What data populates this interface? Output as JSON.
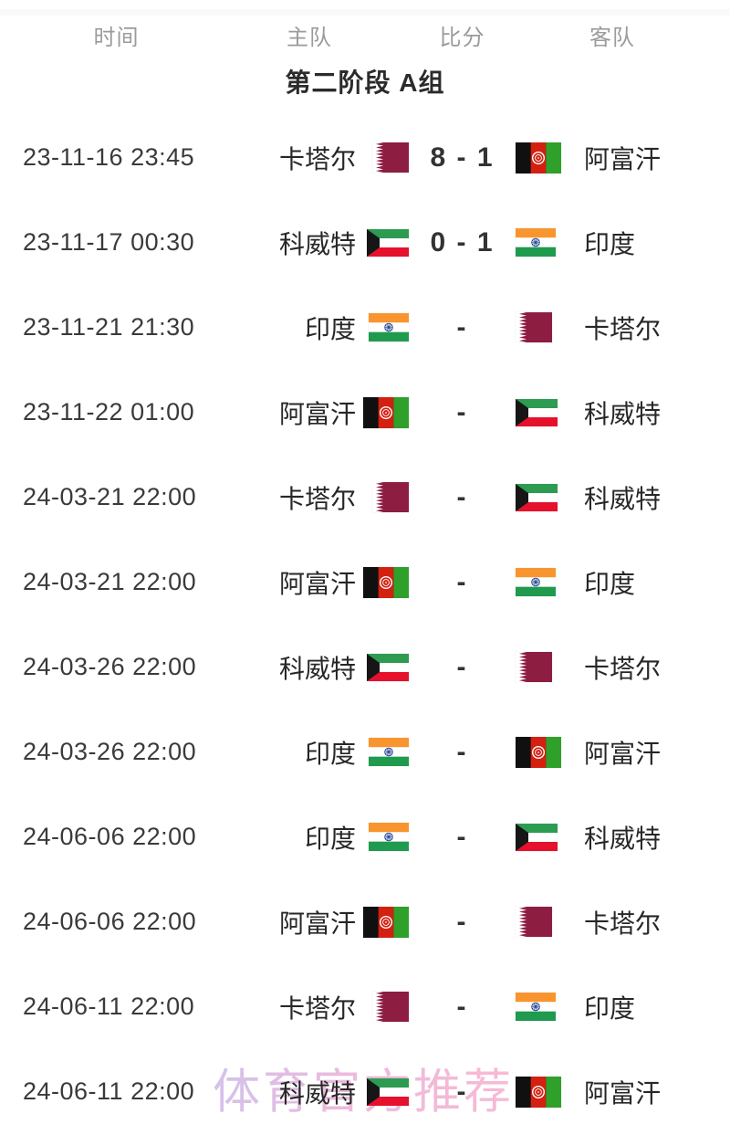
{
  "header": {
    "columns": [
      "时间",
      "主队",
      "比分",
      "客队"
    ]
  },
  "section_title": "第二阶段 A组",
  "watermark": "体育官方推荐",
  "matches": [
    {
      "time": "23-11-16 23:45",
      "home": "卡塔尔",
      "home_flag": "qatar",
      "score": "8 - 1",
      "away": "阿富汗",
      "away_flag": "afghanistan"
    },
    {
      "time": "23-11-17 00:30",
      "home": "科威特",
      "home_flag": "kuwait",
      "score": "0 - 1",
      "away": "印度",
      "away_flag": "india"
    },
    {
      "time": "23-11-21 21:30",
      "home": "印度",
      "home_flag": "india",
      "score": "-",
      "away": "卡塔尔",
      "away_flag": "qatar"
    },
    {
      "time": "23-11-22 01:00",
      "home": "阿富汗",
      "home_flag": "afghanistan",
      "score": "-",
      "away": "科威特",
      "away_flag": "kuwait"
    },
    {
      "time": "24-03-21 22:00",
      "home": "卡塔尔",
      "home_flag": "qatar",
      "score": "-",
      "away": "科威特",
      "away_flag": "kuwait"
    },
    {
      "time": "24-03-21 22:00",
      "home": "阿富汗",
      "home_flag": "afghanistan",
      "score": "-",
      "away": "印度",
      "away_flag": "india"
    },
    {
      "time": "24-03-26 22:00",
      "home": "科威特",
      "home_flag": "kuwait",
      "score": "-",
      "away": "卡塔尔",
      "away_flag": "qatar"
    },
    {
      "time": "24-03-26 22:00",
      "home": "印度",
      "home_flag": "india",
      "score": "-",
      "away": "阿富汗",
      "away_flag": "afghanistan"
    },
    {
      "time": "24-06-06 22:00",
      "home": "印度",
      "home_flag": "india",
      "score": "-",
      "away": "科威特",
      "away_flag": "kuwait"
    },
    {
      "time": "24-06-06 22:00",
      "home": "阿富汗",
      "home_flag": "afghanistan",
      "score": "-",
      "away": "卡塔尔",
      "away_flag": "qatar"
    },
    {
      "time": "24-06-11 22:00",
      "home": "卡塔尔",
      "home_flag": "qatar",
      "score": "-",
      "away": "印度",
      "away_flag": "india"
    },
    {
      "time": "24-06-11 22:00",
      "home": "科威特",
      "home_flag": "kuwait",
      "score": "-",
      "away": "阿富汗",
      "away_flag": "afghanistan"
    }
  ],
  "colors": {
    "page_bg": "#ffffff",
    "header_text": "#9b9b9b",
    "title_text": "#2b2b2b",
    "time_text": "#3a3a3a",
    "team_text": "#272727",
    "score_text": "#333333",
    "watermark_from": "#c9b3e6",
    "watermark_to": "#f7a8cb",
    "flags": {
      "qatar": {
        "maroon": "#8e1d42",
        "white": "#ffffff"
      },
      "afghanistan": {
        "black": "#101010",
        "red": "#d32011",
        "green": "#2fa02a",
        "emblem": "#ffffff"
      },
      "kuwait": {
        "green": "#2d9b50",
        "white": "#ffffff",
        "red": "#e5112d",
        "black": "#161616"
      },
      "india": {
        "saffron": "#f9952e",
        "white": "#ffffff",
        "green": "#1f9a4e",
        "navy": "#1a3d8f"
      }
    }
  }
}
